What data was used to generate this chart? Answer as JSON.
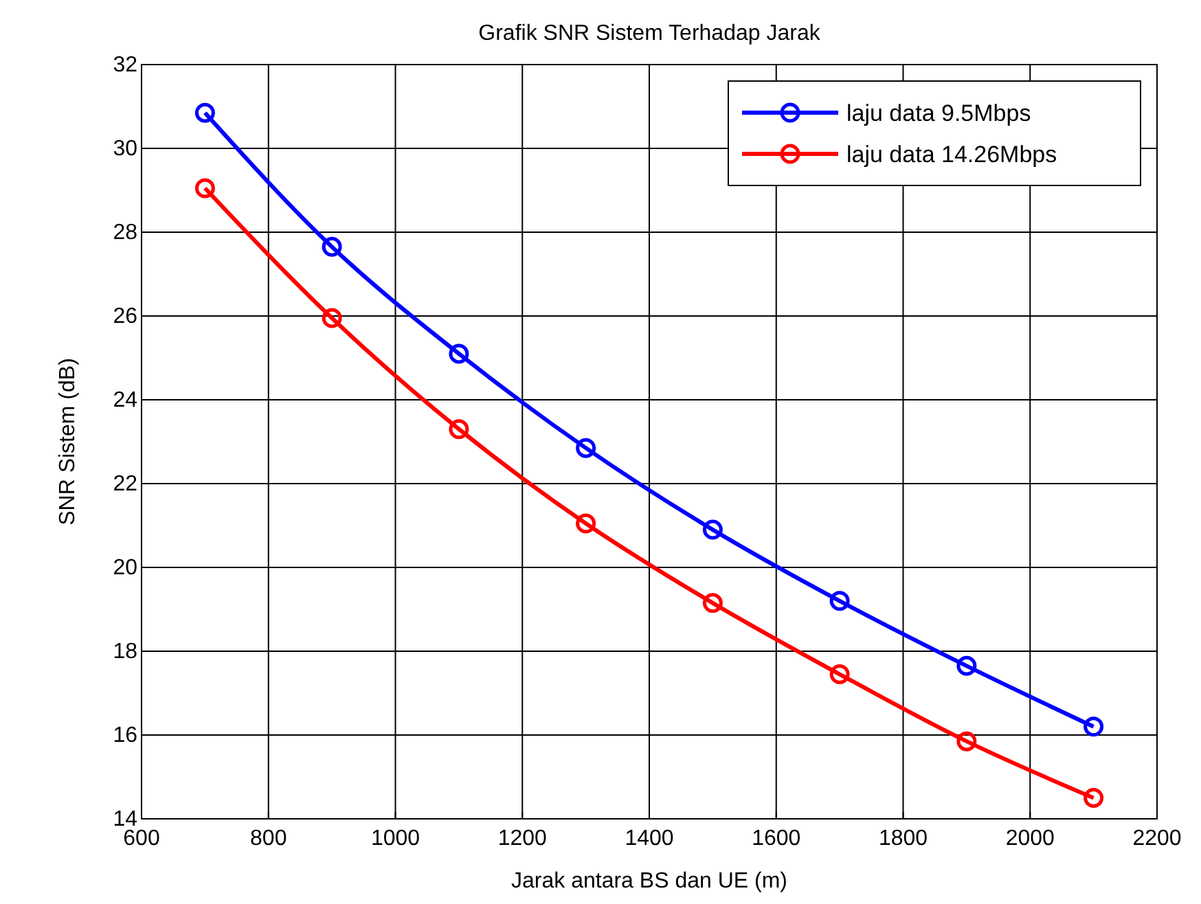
{
  "chart_data": {
    "type": "line",
    "title": "Grafik SNR Sistem Terhadap Jarak",
    "xlabel": "Jarak antara BS dan UE (m)",
    "ylabel": "SNR Sistem (dB)",
    "x": [
      700,
      900,
      1100,
      1300,
      1500,
      1700,
      1900,
      2100
    ],
    "series": [
      {
        "name": "laju data 9.5Mbps",
        "color": "#0000ff",
        "values": [
          30.85,
          27.65,
          25.1,
          22.85,
          20.9,
          19.2,
          17.65,
          16.2
        ]
      },
      {
        "name": "laju data 14.26Mbps",
        "color": "#ff0000",
        "values": [
          29.05,
          25.95,
          23.3,
          21.05,
          19.15,
          17.45,
          15.85,
          14.5
        ]
      }
    ],
    "xlim": [
      600,
      2200
    ],
    "xticks": [
      600,
      800,
      1000,
      1200,
      1400,
      1600,
      1800,
      2000,
      2200
    ],
    "ylim": [
      14,
      32
    ],
    "yticks": [
      14,
      16,
      18,
      20,
      22,
      24,
      26,
      28,
      30,
      32
    ],
    "grid": true,
    "legend": "top right",
    "marker": "circle",
    "line_style": "solid"
  }
}
